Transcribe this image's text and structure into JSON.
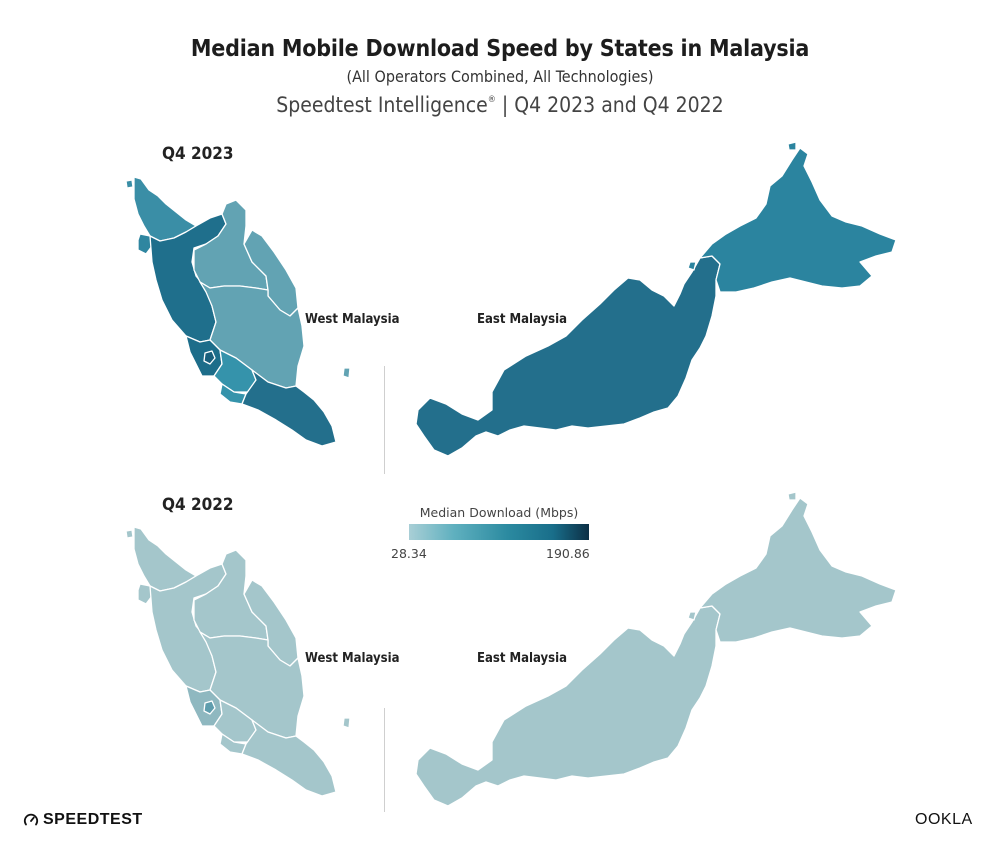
{
  "header": {
    "title": "Median Mobile Download Speed by States in Malaysia",
    "subtitle": "(All Operators Combined, All Technologies)",
    "source_main": "Speedtest Intelligence",
    "source_mark": "®",
    "source_rest": " | Q4 2023 and Q4 2022"
  },
  "panels": {
    "q4_2023": {
      "label": "Q4 2023"
    },
    "q4_2022": {
      "label": "Q4 2022"
    }
  },
  "region_labels": {
    "west": "West Malaysia",
    "east": "East Malaysia"
  },
  "legend": {
    "title": "Median Download (Mbps)",
    "min": "28.34",
    "max": "190.86",
    "colors": [
      "#a9cfd6",
      "#5fb0bf",
      "#2b8aa0",
      "#196e8a",
      "#0c2f45"
    ]
  },
  "colors": {
    "q4_2023": {
      "perlis_kedah": "#3a8ea6",
      "penang": "#2f86a0",
      "perak": "#1f6f8c",
      "kelantan": "#62a3b3",
      "terengganu": "#62a3b3",
      "pahang": "#62a3b3",
      "selangor": "#1d6d8a",
      "kuala_lumpur": "#1a5f7c",
      "negeri_sembilan": "#3593ab",
      "melaka": "#3593ab",
      "johor": "#236f8c",
      "sarawak": "#236f8c",
      "sabah": "#2b849f"
    },
    "q4_2022": {
      "default": "#a4c6cb",
      "selangor": "#8fb8c0",
      "kuala_lumpur": "#5f9dad",
      "border": "#ffffff"
    }
  },
  "branding": {
    "speedtest": "SPEEDTEST",
    "ookla": "OOKLA"
  }
}
